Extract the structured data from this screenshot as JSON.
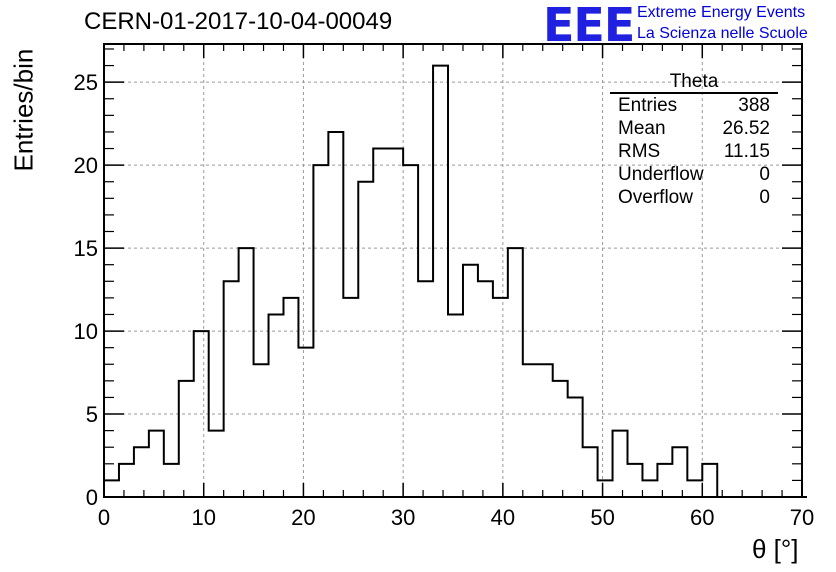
{
  "header": {
    "title": "CERN-01-2017-10-04-00049",
    "logo_text": "EEE",
    "logo_line1": "Extreme Energy Events",
    "logo_line2": "La Scienza nelle Scuole"
  },
  "stats_box": {
    "title": "Theta",
    "rows": [
      {
        "label": "Entries",
        "value": "388"
      },
      {
        "label": "Mean",
        "value": "26.52"
      },
      {
        "label": "RMS",
        "value": "11.15"
      },
      {
        "label": "Underflow",
        "value": "0"
      },
      {
        "label": "Overflow",
        "value": "0"
      }
    ]
  },
  "chart_data": {
    "type": "bar",
    "style": "step-histogram",
    "bin_width": 1.5,
    "x_start": 0,
    "values": [
      1,
      2,
      3,
      4,
      2,
      7,
      10,
      4,
      13,
      15,
      8,
      11,
      12,
      9,
      20,
      22,
      12,
      19,
      21,
      21,
      20,
      13,
      26,
      11,
      14,
      13,
      12,
      15,
      8,
      8,
      7,
      6,
      3,
      1,
      4,
      2,
      1,
      2,
      3,
      1,
      2,
      0,
      0,
      0,
      0,
      0,
      0
    ],
    "xlabel": "θ [°]",
    "ylabel": "Entries/bin",
    "xlim": [
      0,
      70
    ],
    "ylim": [
      0,
      27.3
    ],
    "xticks": [
      0,
      10,
      20,
      30,
      40,
      50,
      60,
      70
    ],
    "yticks": [
      0,
      5,
      10,
      15,
      20,
      25
    ],
    "grid": true
  }
}
